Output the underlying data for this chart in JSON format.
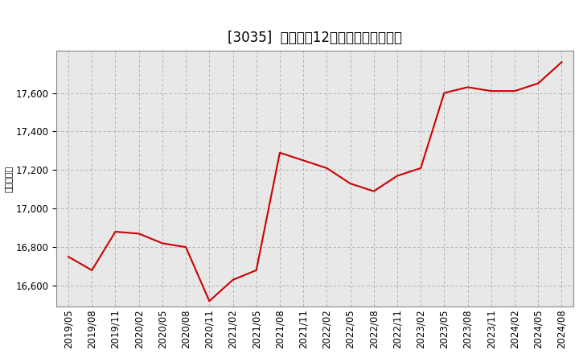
{
  "title": "[3035]  売上高の12か月移動合計の推移",
  "ylabel": "（百万円）",
  "line_color": "#cc0000",
  "bg_color": "#ffffff",
  "plot_bg_color": "#e8e8e8",
  "grid_color": "#aaaaaa",
  "dates": [
    "2019/05",
    "2019/08",
    "2019/11",
    "2020/02",
    "2020/05",
    "2020/08",
    "2020/11",
    "2021/02",
    "2021/05",
    "2021/08",
    "2021/11",
    "2022/02",
    "2022/05",
    "2022/08",
    "2022/11",
    "2023/02",
    "2023/05",
    "2023/08",
    "2023/11",
    "2024/02",
    "2024/05",
    "2024/08"
  ],
  "values": [
    16750,
    16680,
    16880,
    16870,
    16820,
    16800,
    16520,
    16630,
    16680,
    17290,
    17250,
    17210,
    17130,
    17090,
    17170,
    17210,
    17600,
    17630,
    17610,
    17610,
    17650,
    17760
  ],
  "yticks": [
    16600,
    16800,
    17000,
    17200,
    17400,
    17600
  ],
  "ylim": [
    16490,
    17820
  ],
  "title_fontsize": 12,
  "label_fontsize": 8,
  "tick_fontsize": 8.5
}
